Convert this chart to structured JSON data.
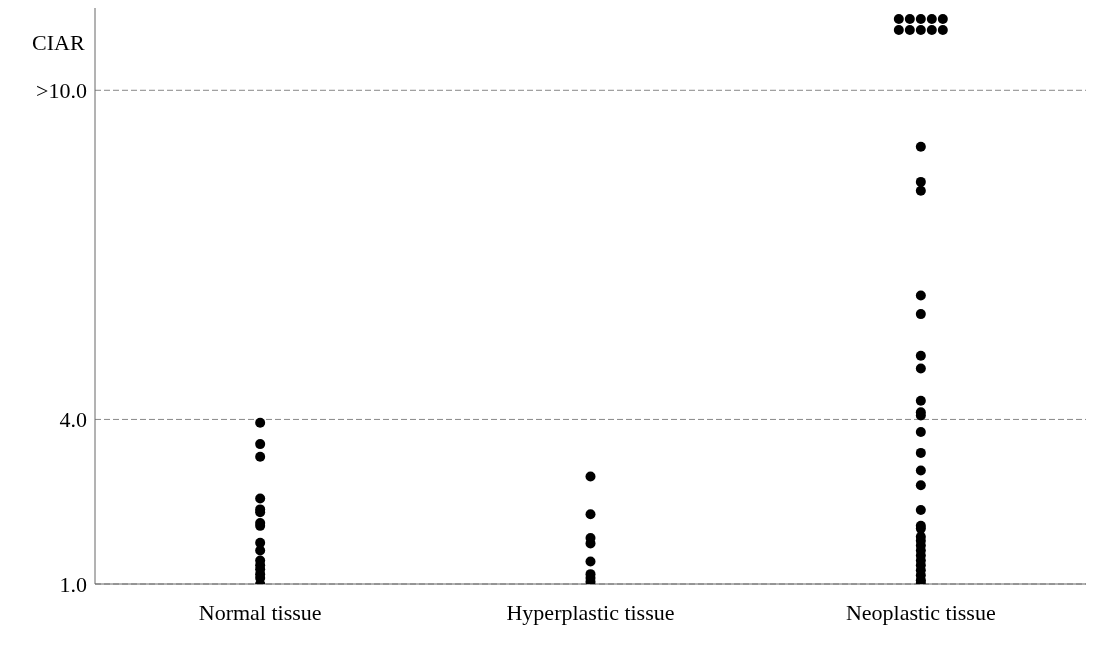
{
  "chart_data": {
    "type": "scatter",
    "ylabel": "CIAR",
    "categories": [
      "Normal tissue",
      "Hyperplastic tissue",
      "Neoplastic tissue"
    ],
    "series": [
      {
        "color": "#000000",
        "x": [
          "Normal tissue",
          "Normal tissue",
          "Normal tissue",
          "Normal tissue",
          "Normal tissue",
          "Normal tissue",
          "Normal tissue",
          "Normal tissue",
          "Normal tissue",
          "Normal tissue",
          "Normal tissue",
          "Normal tissue",
          "Normal tissue",
          "Normal tissue",
          "Normal tissue",
          "Normal tissue",
          "Hyperplastic tissue",
          "Hyperplastic tissue",
          "Hyperplastic tissue",
          "Hyperplastic tissue",
          "Hyperplastic tissue",
          "Hyperplastic tissue",
          "Hyperplastic tissue",
          "Hyperplastic tissue",
          "Neoplastic tissue",
          "Neoplastic tissue",
          "Neoplastic tissue",
          "Neoplastic tissue",
          "Neoplastic tissue",
          "Neoplastic tissue",
          "Neoplastic tissue",
          "Neoplastic tissue",
          "Neoplastic tissue",
          "Neoplastic tissue",
          "Neoplastic tissue",
          "Neoplastic tissue",
          "Neoplastic tissue",
          "Neoplastic tissue",
          "Neoplastic tissue",
          "Neoplastic tissue",
          "Neoplastic tissue",
          "Neoplastic tissue",
          "Neoplastic tissue",
          "Neoplastic tissue",
          "Neoplastic tissue",
          "Neoplastic tissue",
          "Neoplastic tissue",
          "Neoplastic tissue",
          "Neoplastic tissue",
          "Neoplastic tissue",
          "Neoplastic tissue",
          "Neoplastic tissue",
          "Neoplastic tissue",
          "Neoplastic tissue",
          "Neoplastic tissue",
          "Neoplastic tissue",
          "Neoplastic tissue",
          "Neoplastic tissue",
          "Neoplastic tissue",
          "Neoplastic tissue",
          "Neoplastic tissue",
          "Neoplastic tissue"
        ],
        "values": [
          3.94,
          3.55,
          3.32,
          2.56,
          2.36,
          2.31,
          2.11,
          2.06,
          1.75,
          1.61,
          1.43,
          1.34,
          1.27,
          1.18,
          1.11,
          1.0,
          2.96,
          2.27,
          1.84,
          1.74,
          1.41,
          1.18,
          1.11,
          1.04,
          11.3,
          11.3,
          11.3,
          11.3,
          11.3,
          11.1,
          11.1,
          11.1,
          11.1,
          11.1,
          8.97,
          8.33,
          8.17,
          6.26,
          5.92,
          5.16,
          4.93,
          4.34,
          4.13,
          4.07,
          3.77,
          3.39,
          3.07,
          2.8,
          2.35,
          2.06,
          2.01,
          1.86,
          1.79,
          1.7,
          1.61,
          1.52,
          1.43,
          1.34,
          1.25,
          1.16,
          1.07,
          1.02
        ]
      }
    ],
    "ylim": [
      1,
      11.5
    ],
    "yticks": [
      {
        "value": 1,
        "label": "1.0"
      },
      {
        "value": 4,
        "label": "4.0"
      },
      {
        "value": 10,
        "label": ">10.0"
      }
    ],
    "grid": "y",
    "line_style": "dashed",
    "marker": "circle"
  }
}
